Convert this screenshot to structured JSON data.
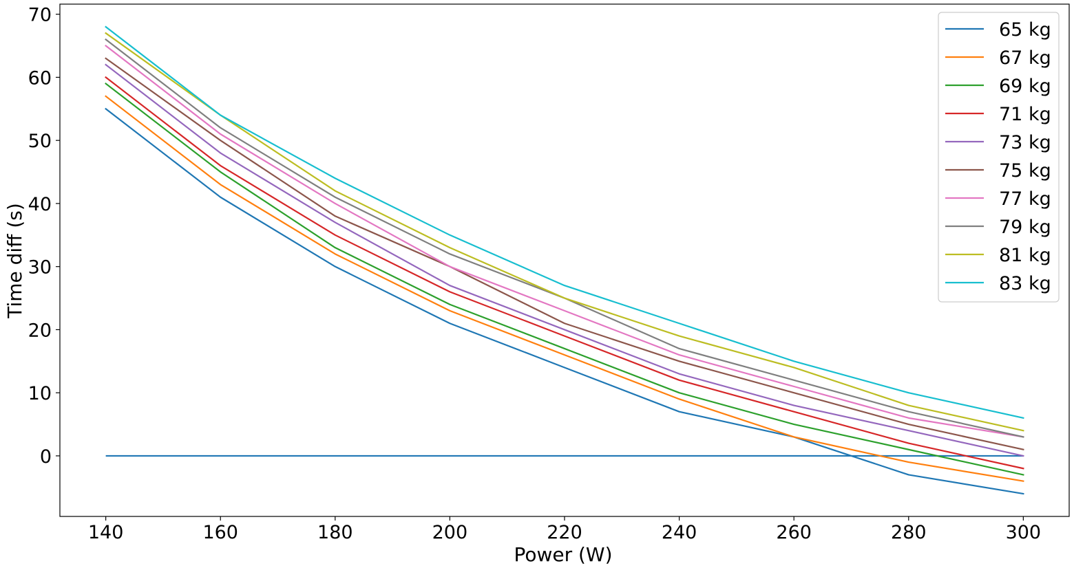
{
  "chart_data": {
    "type": "line",
    "title": "",
    "xlabel": "Power (W)",
    "ylabel": "Time diff (s)",
    "xlim": [
      132,
      308
    ],
    "ylim": [
      -9.6,
      71.6
    ],
    "x": [
      140,
      160,
      180,
      200,
      220,
      240,
      260,
      280,
      300
    ],
    "xticks": [
      140,
      160,
      180,
      200,
      220,
      240,
      260,
      280,
      300
    ],
    "yticks": [
      0,
      10,
      20,
      30,
      40,
      50,
      60,
      70
    ],
    "grid": false,
    "legend_position": "top-right",
    "series": [
      {
        "name": "65 kg",
        "color": "#1f77b4",
        "values": [
          55,
          41,
          30,
          21,
          14,
          7,
          3,
          -3,
          -6
        ]
      },
      {
        "name": "67 kg",
        "color": "#ff7f0e",
        "values": [
          57,
          43,
          32,
          23,
          16,
          9,
          3,
          -1,
          -4
        ]
      },
      {
        "name": "69 kg",
        "color": "#2ca02c",
        "values": [
          59,
          45,
          33,
          24,
          17,
          10,
          5,
          1,
          -3
        ]
      },
      {
        "name": "71 kg",
        "color": "#d62728",
        "values": [
          60,
          46,
          35,
          26,
          19,
          12,
          7,
          2,
          -2
        ]
      },
      {
        "name": "73 kg",
        "color": "#9467bd",
        "values": [
          62,
          48,
          37,
          27,
          20,
          13,
          8,
          4,
          0
        ]
      },
      {
        "name": "75 kg",
        "color": "#8c564b",
        "values": [
          63,
          50,
          38,
          30,
          21,
          15,
          10,
          5,
          1
        ]
      },
      {
        "name": "77 kg",
        "color": "#e377c2",
        "values": [
          65,
          51,
          40,
          30,
          23,
          16,
          11,
          6,
          3
        ]
      },
      {
        "name": "79 kg",
        "color": "#7f7f7f",
        "values": [
          66,
          52,
          41,
          32,
          25,
          17,
          12,
          7,
          3
        ]
      },
      {
        "name": "81 kg",
        "color": "#bcbd22",
        "values": [
          67,
          54,
          42,
          33,
          25,
          19,
          14,
          8,
          4
        ]
      },
      {
        "name": "83 kg",
        "color": "#17becf",
        "values": [
          68,
          54,
          44,
          35,
          27,
          21,
          15,
          10,
          6
        ]
      }
    ],
    "reference_lines": [
      {
        "color": "#1f77b4",
        "y": 0,
        "x_range": [
          140,
          300
        ]
      }
    ]
  }
}
